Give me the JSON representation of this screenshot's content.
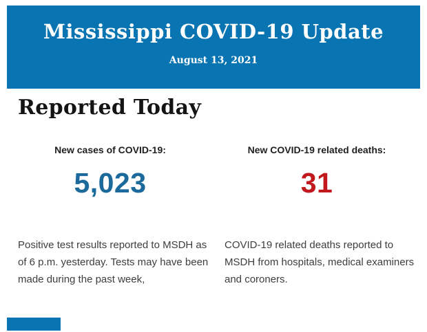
{
  "colors": {
    "banner_blue": "#0874b2",
    "cases_blue": "#1b6a9b",
    "deaths_red": "#c1181e",
    "heading_black": "#141414",
    "body_gray": "#3d3d3d"
  },
  "banner": {
    "title": "Mississippi COVID-19 Update",
    "date": "August 13, 2021"
  },
  "section": {
    "heading": "Reported Today"
  },
  "stats": {
    "cases": {
      "label": "New cases of COVID-19:",
      "value": "5,023",
      "description": "Positive test results reported to MSDH as of 6 p.m. yesterday. Tests may have been made during the past week,"
    },
    "deaths": {
      "label": "New COVID-19 related deaths:",
      "value": "31",
      "description": "COVID-19 related deaths reported to MSDH from hospitals, medical examiners and coroners."
    }
  }
}
